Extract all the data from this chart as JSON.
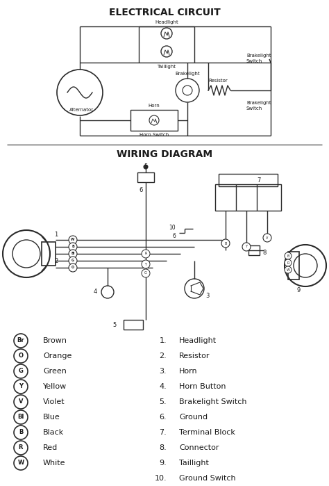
{
  "title_top": "ELECTRICAL CIRCUIT",
  "title_bottom": "WIRING DIAGRAM",
  "bg_color": "#ffffff",
  "line_color": "#2a2a2a",
  "text_color": "#1a1a1a",
  "color_legend": [
    {
      "symbol": "Br",
      "name": "Brown"
    },
    {
      "symbol": "O",
      "name": "Orange"
    },
    {
      "symbol": "G",
      "name": "Green"
    },
    {
      "symbol": "Y",
      "name": "Yellow"
    },
    {
      "symbol": "V",
      "name": "Violet"
    },
    {
      "symbol": "Bl",
      "name": "Blue"
    },
    {
      "symbol": "B",
      "name": "Black"
    },
    {
      "symbol": "R",
      "name": "Red"
    },
    {
      "symbol": "W",
      "name": "White"
    }
  ],
  "numbered_items": [
    "Headlight",
    "Resistor",
    "Horn",
    "Horn Button",
    "Brakelight Switch",
    "Ground",
    "Terminal Block",
    "Connector",
    "Taillight",
    "Ground Switch"
  ],
  "figwidth": 4.74,
  "figheight": 6.99,
  "dpi": 100
}
